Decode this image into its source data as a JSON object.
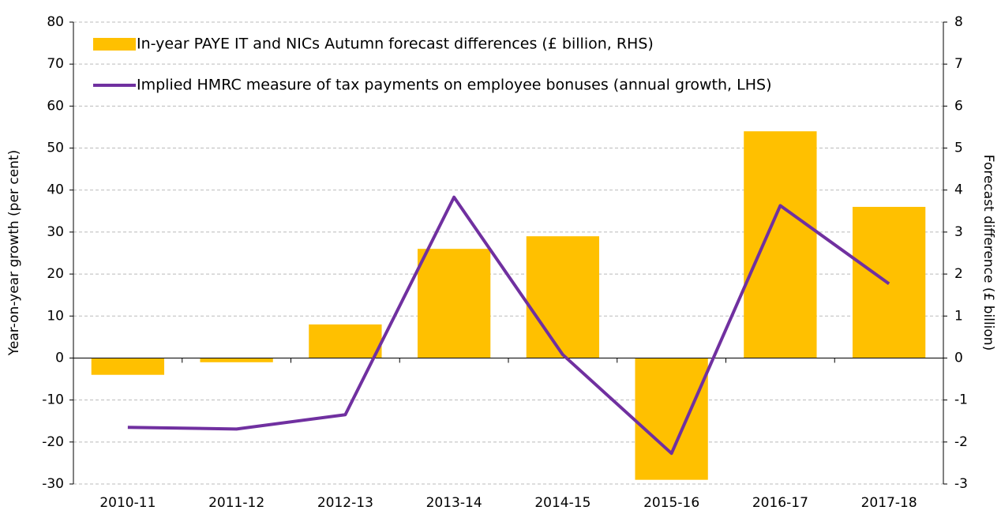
{
  "chart_data": {
    "type": "bar",
    "categories": [
      "2010-11",
      "2011-12",
      "2012-13",
      "2013-14",
      "2014-15",
      "2015-16",
      "2016-17",
      "2017-18"
    ],
    "series": [
      {
        "name": "In-year PAYE IT and NICs Autumn forecast differences (£ billion, RHS)",
        "type": "bar",
        "axis": "y2",
        "color": "#ffc000",
        "values": [
          -0.4,
          -0.1,
          0.8,
          2.6,
          2.9,
          -2.9,
          5.4,
          3.6
        ]
      },
      {
        "name": "Implied HMRC measure of tax payments on employee bonuses (annual growth, LHS)",
        "type": "line",
        "axis": "y",
        "color": "#7030a0",
        "values": [
          -16.5,
          -16.9,
          -13.5,
          38.3,
          0.8,
          -22.7,
          36.3,
          17.7
        ]
      }
    ],
    "ylabel": "Year-on-year growth (per cent)",
    "y2label": "Forecast difference (£ billion)",
    "ylim": [
      -30,
      80
    ],
    "yticks": [
      -30,
      -20,
      -10,
      0,
      10,
      20,
      30,
      40,
      50,
      60,
      70,
      80
    ],
    "y2lim": [
      -3,
      8
    ],
    "y2ticks": [
      -3,
      -2,
      -1,
      0,
      1,
      2,
      3,
      4,
      5,
      6,
      7,
      8
    ],
    "grid": true
  }
}
